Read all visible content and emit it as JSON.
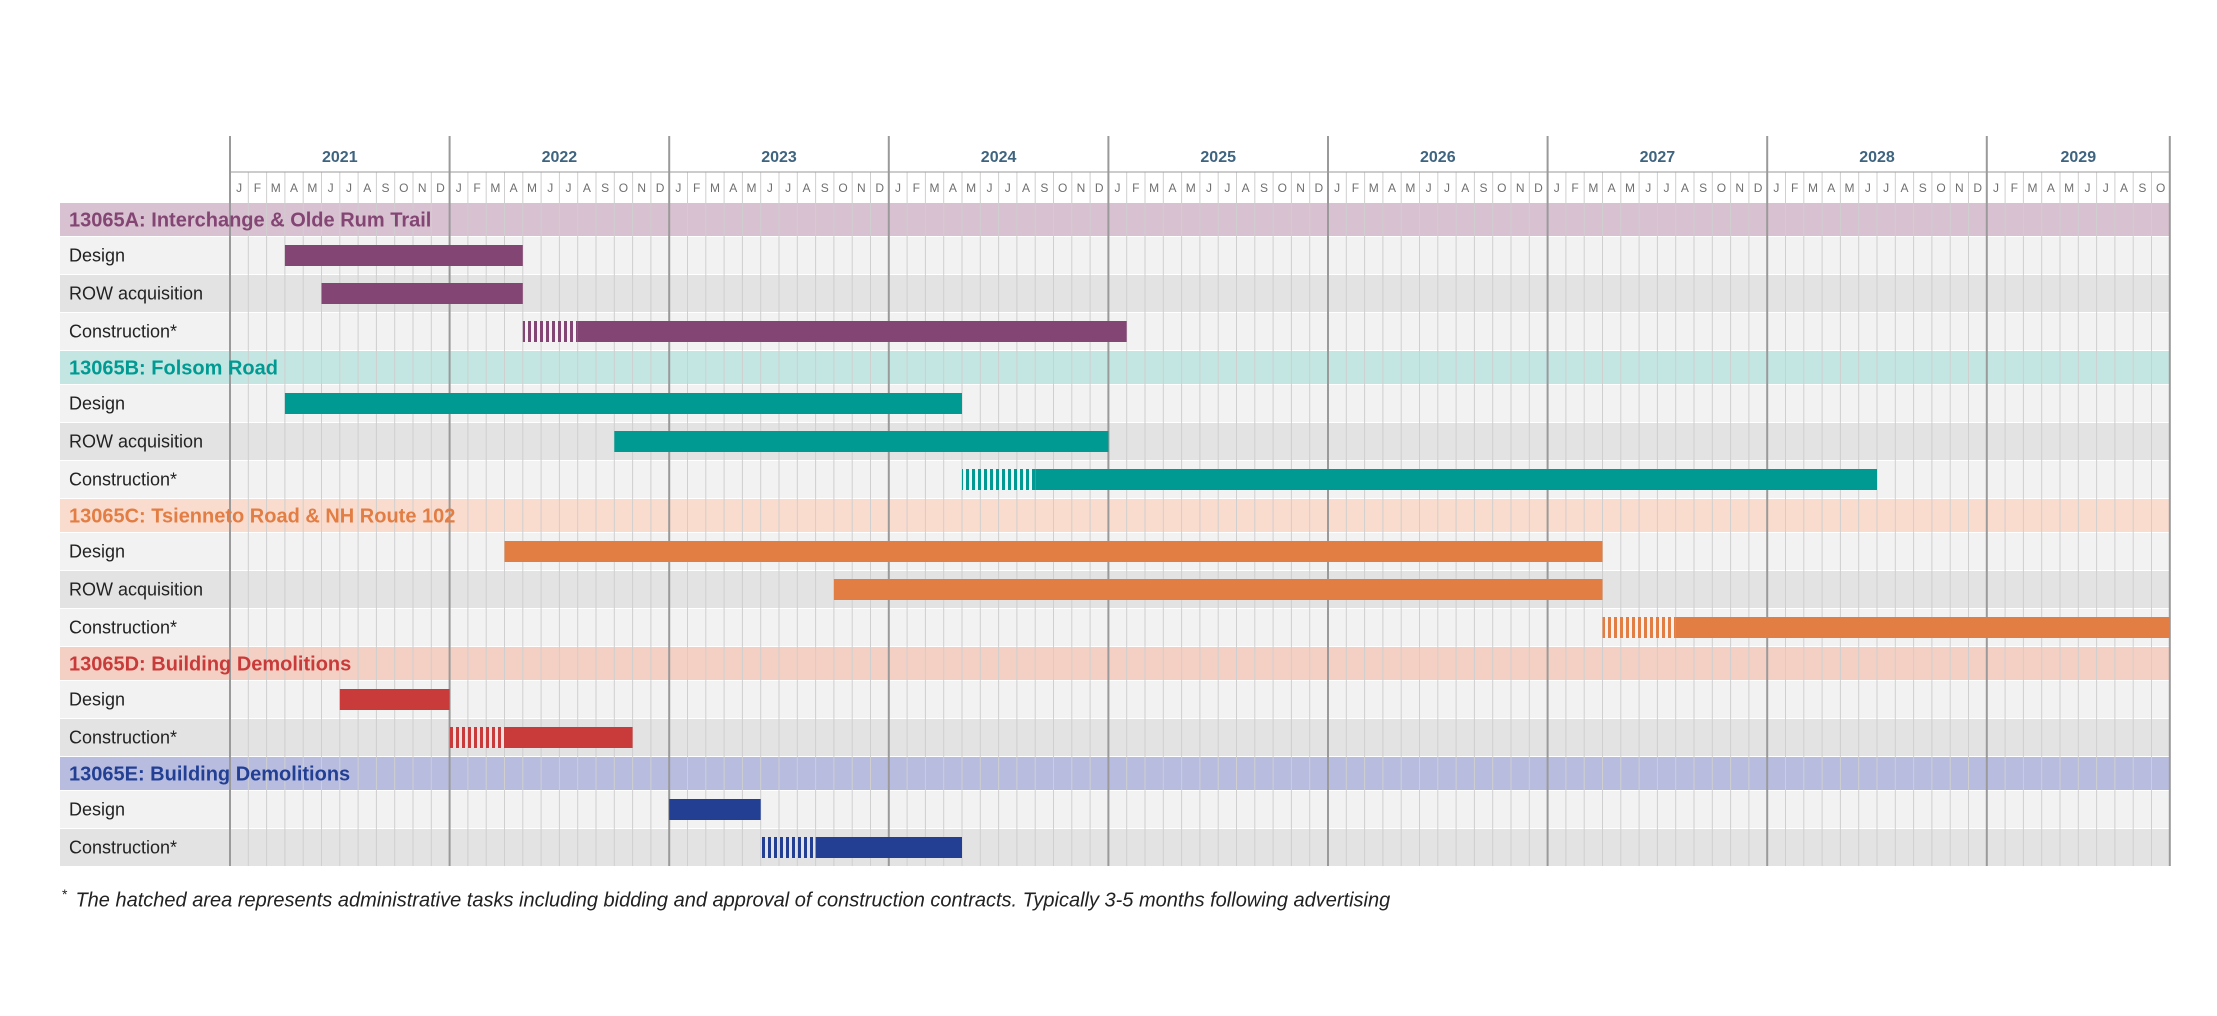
{
  "chart_data": {
    "type": "gantt",
    "time_axis": {
      "years": [
        "2021",
        "2022",
        "2023",
        "2024",
        "2025",
        "2026",
        "2027",
        "2028",
        "2029"
      ],
      "months": [
        "J",
        "F",
        "M",
        "A",
        "M",
        "J",
        "J",
        "A",
        "S",
        "O",
        "N",
        "D"
      ],
      "start": "2021-01",
      "end": "2029-10"
    },
    "colors": {
      "axis": "#3f6480",
      "month_text": "#6f6f6f",
      "grid_line": "#cfcfcf",
      "year_line": "#9a9a9a",
      "row_light": "#f2f2f2",
      "row_dark": "#e3e3e3"
    },
    "groups": [
      {
        "name": "13065A: Interchange & Olde Rum Trail",
        "color": "#834573",
        "band_color": "#d8c1d0",
        "tasks": [
          {
            "name": "Design",
            "start": "2021-04",
            "end": "2022-04"
          },
          {
            "name": "ROW acquisition",
            "start": "2021-06",
            "end": "2022-04"
          },
          {
            "name": "Construction*",
            "hatch_start": "2022-05",
            "start": "2022-08",
            "end": "2025-01"
          }
        ]
      },
      {
        "name": "13065B: Folsom Road",
        "color": "#009a92",
        "band_color": "#c4e6e3",
        "tasks": [
          {
            "name": "Design",
            "start": "2021-04",
            "end": "2024-04"
          },
          {
            "name": "ROW acquisition",
            "start": "2022-10",
            "end": "2024-12"
          },
          {
            "name": "Construction*",
            "hatch_start": "2024-05",
            "start": "2024-09",
            "end": "2028-06"
          }
        ]
      },
      {
        "name": "13065C: Tsienneto Road & NH Route 102",
        "color": "#e27d43",
        "band_color": "#fadcce",
        "tasks": [
          {
            "name": "Design",
            "start": "2022-04",
            "end": "2027-03"
          },
          {
            "name": "ROW acquisition",
            "start": "2023-10",
            "end": "2027-03"
          },
          {
            "name": "Construction*",
            "hatch_start": "2027-04",
            "start": "2027-08",
            "end": "2029-10"
          }
        ]
      },
      {
        "name": "13065D: Building Demolitions",
        "color": "#c93b3a",
        "band_color": "#f3d0c3",
        "tasks": [
          {
            "name": "Design",
            "start": "2021-07",
            "end": "2021-12"
          },
          {
            "name": "Construction*",
            "hatch_start": "2022-01",
            "start": "2022-04",
            "end": "2022-10"
          }
        ]
      },
      {
        "name": "13065E: Building Demolitions",
        "color": "#223f93",
        "band_color": "#b8bde0",
        "tasks": [
          {
            "name": "Design",
            "start": "2023-01",
            "end": "2023-05"
          },
          {
            "name": "Construction*",
            "hatch_start": "2023-06",
            "start": "2023-09",
            "end": "2024-04"
          }
        ]
      }
    ],
    "footnote": {
      "marker": "*",
      "text": "The hatched area represents administrative tasks including bidding and approval of construction contracts. Typically 3-5 months following advertising"
    }
  }
}
